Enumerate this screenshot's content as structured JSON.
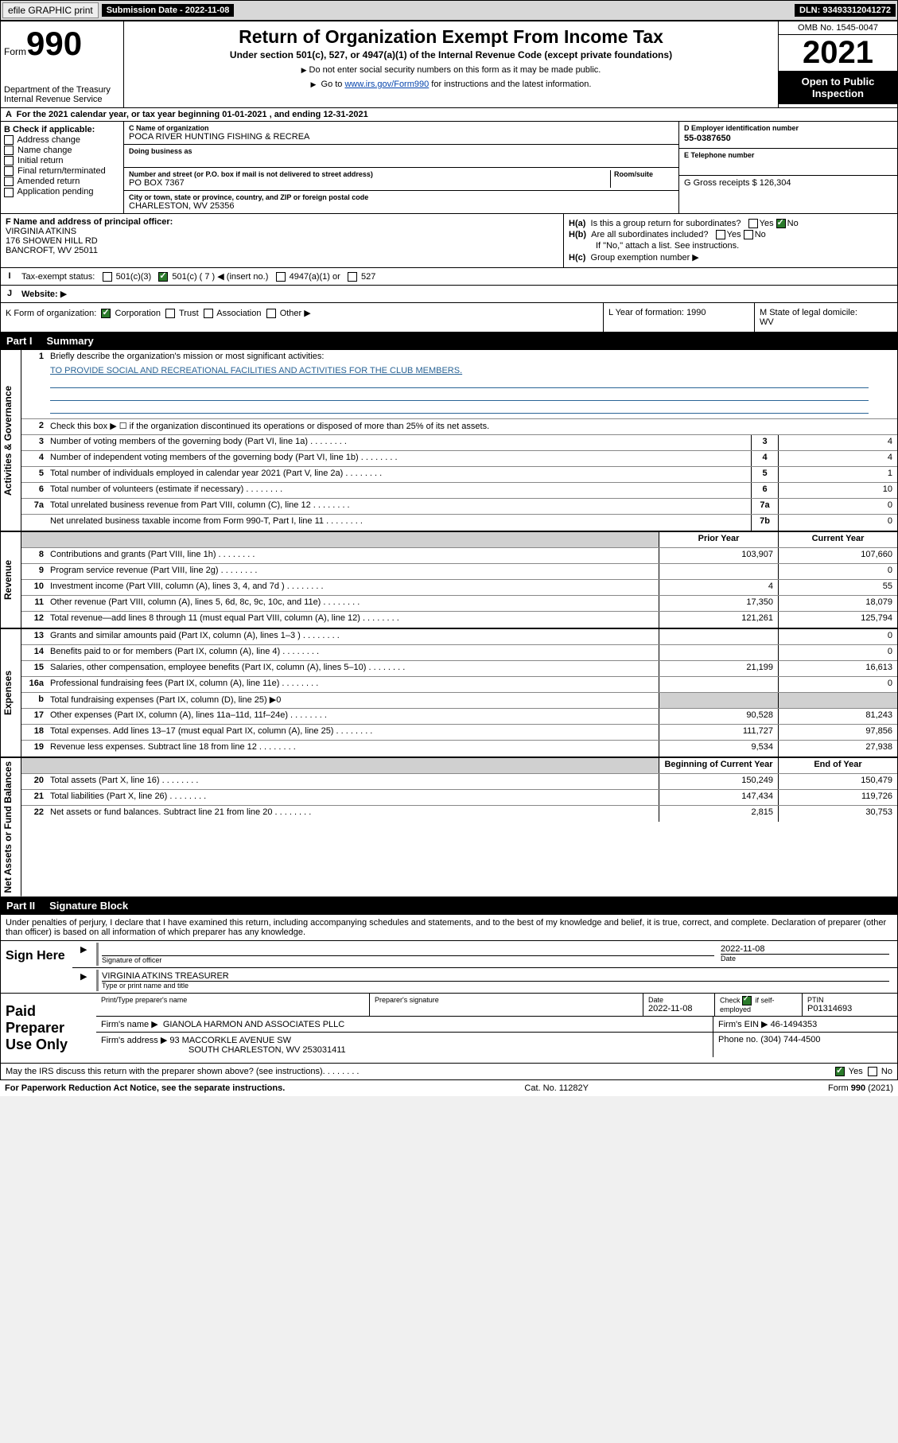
{
  "topbar": {
    "efile": "efile GRAPHIC print",
    "subdate_lbl": "Submission Date - 2022-11-08",
    "dln_lbl": "DLN: 93493312041272"
  },
  "hdr": {
    "form_prefix": "Form",
    "form_no": "990",
    "dept": "Department of the Treasury\nInternal Revenue Service",
    "title": "Return of Organization Exempt From Income Tax",
    "sub": "Under section 501(c), 527, or 4947(a)(1) of the Internal Revenue Code (except private foundations)",
    "note1": "Do not enter social security numbers on this form as it may be made public.",
    "note2_pre": "Go to ",
    "note2_link": "www.irs.gov/Form990",
    "note2_post": " for instructions and the latest information.",
    "omb": "OMB No. 1545-0047",
    "year": "2021",
    "open": "Open to Public Inspection"
  },
  "A": {
    "text": "For the 2021 calendar year, or tax year beginning 01-01-2021    , and ending 12-31-2021"
  },
  "B": {
    "hdr": "B Check if applicable:",
    "opts": [
      "Address change",
      "Name change",
      "Initial return",
      "Final return/terminated",
      "Amended return",
      "Application pending"
    ]
  },
  "C": {
    "name_lbl": "C Name of organization",
    "name": "POCA RIVER HUNTING FISHING & RECREA",
    "dba_lbl": "Doing business as",
    "street_lbl": "Number and street (or P.O. box if mail is not delivered to street address)",
    "room_lbl": "Room/suite",
    "street": "PO BOX 7367",
    "city_lbl": "City or town, state or province, country, and ZIP or foreign postal code",
    "city": "CHARLESTON, WV  25356"
  },
  "D": {
    "lbl": "D Employer identification number",
    "val": "55-0387650"
  },
  "E": {
    "lbl": "E Telephone number",
    "val": ""
  },
  "G": {
    "lbl": "G Gross receipts $",
    "val": "126,304"
  },
  "F": {
    "lbl": "F  Name and address of principal officer:",
    "lines": [
      "VIRGINIA ATKINS",
      "176 SHOWEN HILL RD",
      "BANCROFT, WV  25011"
    ]
  },
  "H": {
    "a": "Is this a group return for subordinates?",
    "b": "Are all subordinates included?",
    "bnote": "If \"No,\" attach a list. See instructions.",
    "c": "Group exemption number",
    "ha_no": true
  },
  "I": {
    "lbl": "Tax-exempt status:",
    "o1": "501(c)(3)",
    "o2": "501(c) ( 7 ) ◀ (insert no.)",
    "o3": "4947(a)(1) or",
    "o4": "527",
    "o2_checked": true
  },
  "J": {
    "lbl": "Website:",
    "arrow": "▶"
  },
  "K": {
    "lbl": "K Form of organization:",
    "o1": "Corporation",
    "o2": "Trust",
    "o3": "Association",
    "o4": "Other",
    "o1_checked": true
  },
  "L": {
    "lbl": "L Year of formation:",
    "val": "1990"
  },
  "M": {
    "lbl": "M State of legal domicile:",
    "val": "WV"
  },
  "part1": {
    "pn": "Part I",
    "pt": "Summary"
  },
  "sum_sections": [
    {
      "label": "Activities & Governance",
      "rows": [
        {
          "n": "1",
          "t": "Briefly describe the organization's mission or most significant activities:",
          "free": "TO PROVIDE SOCIAL AND RECREATIONAL FACILITIES AND ACTIVITIES FOR THE CLUB MEMBERS.",
          "type": "free"
        },
        {
          "n": "2",
          "t": "Check this box ▶ ☐  if the organization discontinued its operations or disposed of more than 25% of its net assets.",
          "type": "note"
        },
        {
          "n": "3",
          "t": "Number of voting members of the governing body (Part VI, line 1a)",
          "num": "3",
          "val": "4",
          "type": "single"
        },
        {
          "n": "4",
          "t": "Number of independent voting members of the governing body (Part VI, line 1b)",
          "num": "4",
          "val": "4",
          "type": "single"
        },
        {
          "n": "5",
          "t": "Total number of individuals employed in calendar year 2021 (Part V, line 2a)",
          "num": "5",
          "val": "1",
          "type": "single"
        },
        {
          "n": "6",
          "t": "Total number of volunteers (estimate if necessary)",
          "num": "6",
          "val": "10",
          "type": "single"
        },
        {
          "n": "7a",
          "t": "Total unrelated business revenue from Part VIII, column (C), line 12",
          "num": "7a",
          "val": "0",
          "type": "single"
        },
        {
          "n": "",
          "t": "Net unrelated business taxable income from Form 990-T, Part I, line 11",
          "num": "7b",
          "val": "0",
          "type": "single"
        }
      ]
    },
    {
      "label": "Revenue",
      "hdr": {
        "c1": "Prior Year",
        "c2": "Current Year"
      },
      "rows": [
        {
          "n": "8",
          "t": "Contributions and grants (Part VIII, line 1h)",
          "v1": "103,907",
          "v2": "107,660",
          "type": "dual"
        },
        {
          "n": "9",
          "t": "Program service revenue (Part VIII, line 2g)",
          "v1": "",
          "v2": "0",
          "type": "dual"
        },
        {
          "n": "10",
          "t": "Investment income (Part VIII, column (A), lines 3, 4, and 7d )",
          "v1": "4",
          "v2": "55",
          "type": "dual"
        },
        {
          "n": "11",
          "t": "Other revenue (Part VIII, column (A), lines 5, 6d, 8c, 9c, 10c, and 11e)",
          "v1": "17,350",
          "v2": "18,079",
          "type": "dual"
        },
        {
          "n": "12",
          "t": "Total revenue—add lines 8 through 11 (must equal Part VIII, column (A), line 12)",
          "v1": "121,261",
          "v2": "125,794",
          "type": "dual"
        }
      ]
    },
    {
      "label": "Expenses",
      "rows": [
        {
          "n": "13",
          "t": "Grants and similar amounts paid (Part IX, column (A), lines 1–3 )",
          "v1": "",
          "v2": "0",
          "type": "dual"
        },
        {
          "n": "14",
          "t": "Benefits paid to or for members (Part IX, column (A), line 4)",
          "v1": "",
          "v2": "0",
          "type": "dual"
        },
        {
          "n": "15",
          "t": "Salaries, other compensation, employee benefits (Part IX, column (A), lines 5–10)",
          "v1": "21,199",
          "v2": "16,613",
          "type": "dual"
        },
        {
          "n": "16a",
          "t": "Professional fundraising fees (Part IX, column (A), line 11e)",
          "v1": "",
          "v2": "0",
          "type": "dual"
        },
        {
          "n": "b",
          "t": "Total fundraising expenses (Part IX, column (D), line 25) ▶0",
          "type": "shaded"
        },
        {
          "n": "17",
          "t": "Other expenses (Part IX, column (A), lines 11a–11d, 11f–24e)",
          "v1": "90,528",
          "v2": "81,243",
          "type": "dual"
        },
        {
          "n": "18",
          "t": "Total expenses. Add lines 13–17 (must equal Part IX, column (A), line 25)",
          "v1": "111,727",
          "v2": "97,856",
          "type": "dual"
        },
        {
          "n": "19",
          "t": "Revenue less expenses. Subtract line 18 from line 12",
          "v1": "9,534",
          "v2": "27,938",
          "type": "dual"
        }
      ]
    },
    {
      "label": "Net Assets or Fund Balances",
      "hdr": {
        "c1": "Beginning of Current Year",
        "c2": "End of Year"
      },
      "rows": [
        {
          "n": "20",
          "t": "Total assets (Part X, line 16)",
          "v1": "150,249",
          "v2": "150,479",
          "type": "dual"
        },
        {
          "n": "21",
          "t": "Total liabilities (Part X, line 26)",
          "v1": "147,434",
          "v2": "119,726",
          "type": "dual"
        },
        {
          "n": "22",
          "t": "Net assets or fund balances. Subtract line 21 from line 20",
          "v1": "2,815",
          "v2": "30,753",
          "type": "dual"
        }
      ]
    }
  ],
  "part2": {
    "pn": "Part II",
    "pt": "Signature Block"
  },
  "sig": {
    "decl": "Under penalties of perjury, I declare that I have examined this return, including accompanying schedules and statements, and to the best of my knowledge and belief, it is true, correct, and complete. Declaration of preparer (other than officer) is based on all information of which preparer has any knowledge.",
    "sign_here": "Sign Here",
    "sig_officer": "Signature of officer",
    "date": "Date",
    "date_val": "2022-11-08",
    "name_title_lbl": "Type or print name and title",
    "name_title": "VIRGINIA ATKINS  TREASURER"
  },
  "prep": {
    "lbl": "Paid Preparer Use Only",
    "col1": "Print/Type preparer's name",
    "col2": "Preparer's signature",
    "col3": "Date",
    "col3v": "2022-11-08",
    "col4": "Check ☑ if self-employed",
    "col5": "PTIN",
    "col5v": "P01314693",
    "firm_lbl": "Firm's name  ▶",
    "firm": "GIANOLA HARMON AND ASSOCIATES PLLC",
    "ein_lbl": "Firm's EIN ▶",
    "ein": "46-1494353",
    "addr_lbl": "Firm's address ▶",
    "addr1": "93 MACCORKLE AVENUE SW",
    "addr2": "SOUTH CHARLESTON, WV  253031411",
    "phone_lbl": "Phone no.",
    "phone": "(304) 744-4500"
  },
  "discuss": "May the IRS discuss this return with the preparer shown above? (see instructions)",
  "discuss_yes": true,
  "footer": {
    "l": "For Paperwork Reduction Act Notice, see the separate instructions.",
    "m": "Cat. No. 11282Y",
    "r": "Form 990 (2021)"
  },
  "colors": {
    "topbar_bg": "#d8d8d8",
    "link": "#0645ad",
    "checked": "#2a7a2a",
    "shaded": "#d0d0d0"
  }
}
